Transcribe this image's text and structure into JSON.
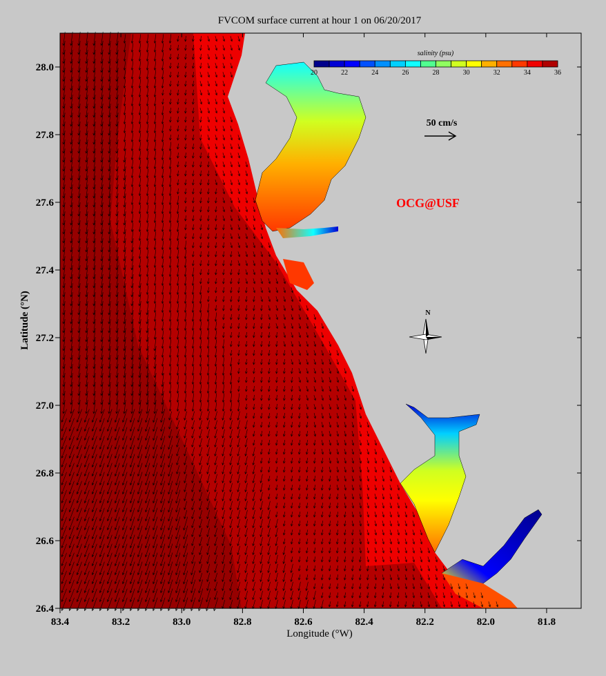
{
  "title": "FVCOM surface current at hour 1 on 06/20/2017",
  "x_axis": {
    "label": "Longitude (°W)",
    "ticks": [
      "83.4",
      "83.2",
      "83.0",
      "82.8",
      "82.6",
      "82.4",
      "82.2",
      "82.0",
      "81.8"
    ],
    "range": [
      83.4,
      81.686
    ]
  },
  "y_axis": {
    "label": "Latitude (°N)",
    "ticks": [
      "26.4",
      "26.6",
      "26.8",
      "27.0",
      "27.2",
      "27.4",
      "27.6",
      "27.8",
      "28.0"
    ],
    "range": [
      26.4,
      28.1
    ]
  },
  "colorbar": {
    "label": "salinity (psu)",
    "min": 20,
    "max": 36,
    "ticks": [
      "20",
      "22",
      "24",
      "26",
      "28",
      "30",
      "32",
      "34",
      "36"
    ],
    "colors": [
      "#00008c",
      "#0000d4",
      "#0000ff",
      "#0050ff",
      "#0090ff",
      "#00d0ff",
      "#10ffff",
      "#50ff90",
      "#90ff60",
      "#d0ff20",
      "#ffff00",
      "#ffb000",
      "#ff7000",
      "#ff3800",
      "#f00000",
      "#b00000"
    ]
  },
  "scale_arrow": {
    "label": "50 cm/s"
  },
  "credit": "OCG@USF",
  "north_label": "N",
  "colors": {
    "land": "#c8c8c8",
    "ocean": "#ee0000",
    "ocean_dark": "#b40000",
    "ocean_darkest": "#960000",
    "credit": "#ff0000"
  }
}
